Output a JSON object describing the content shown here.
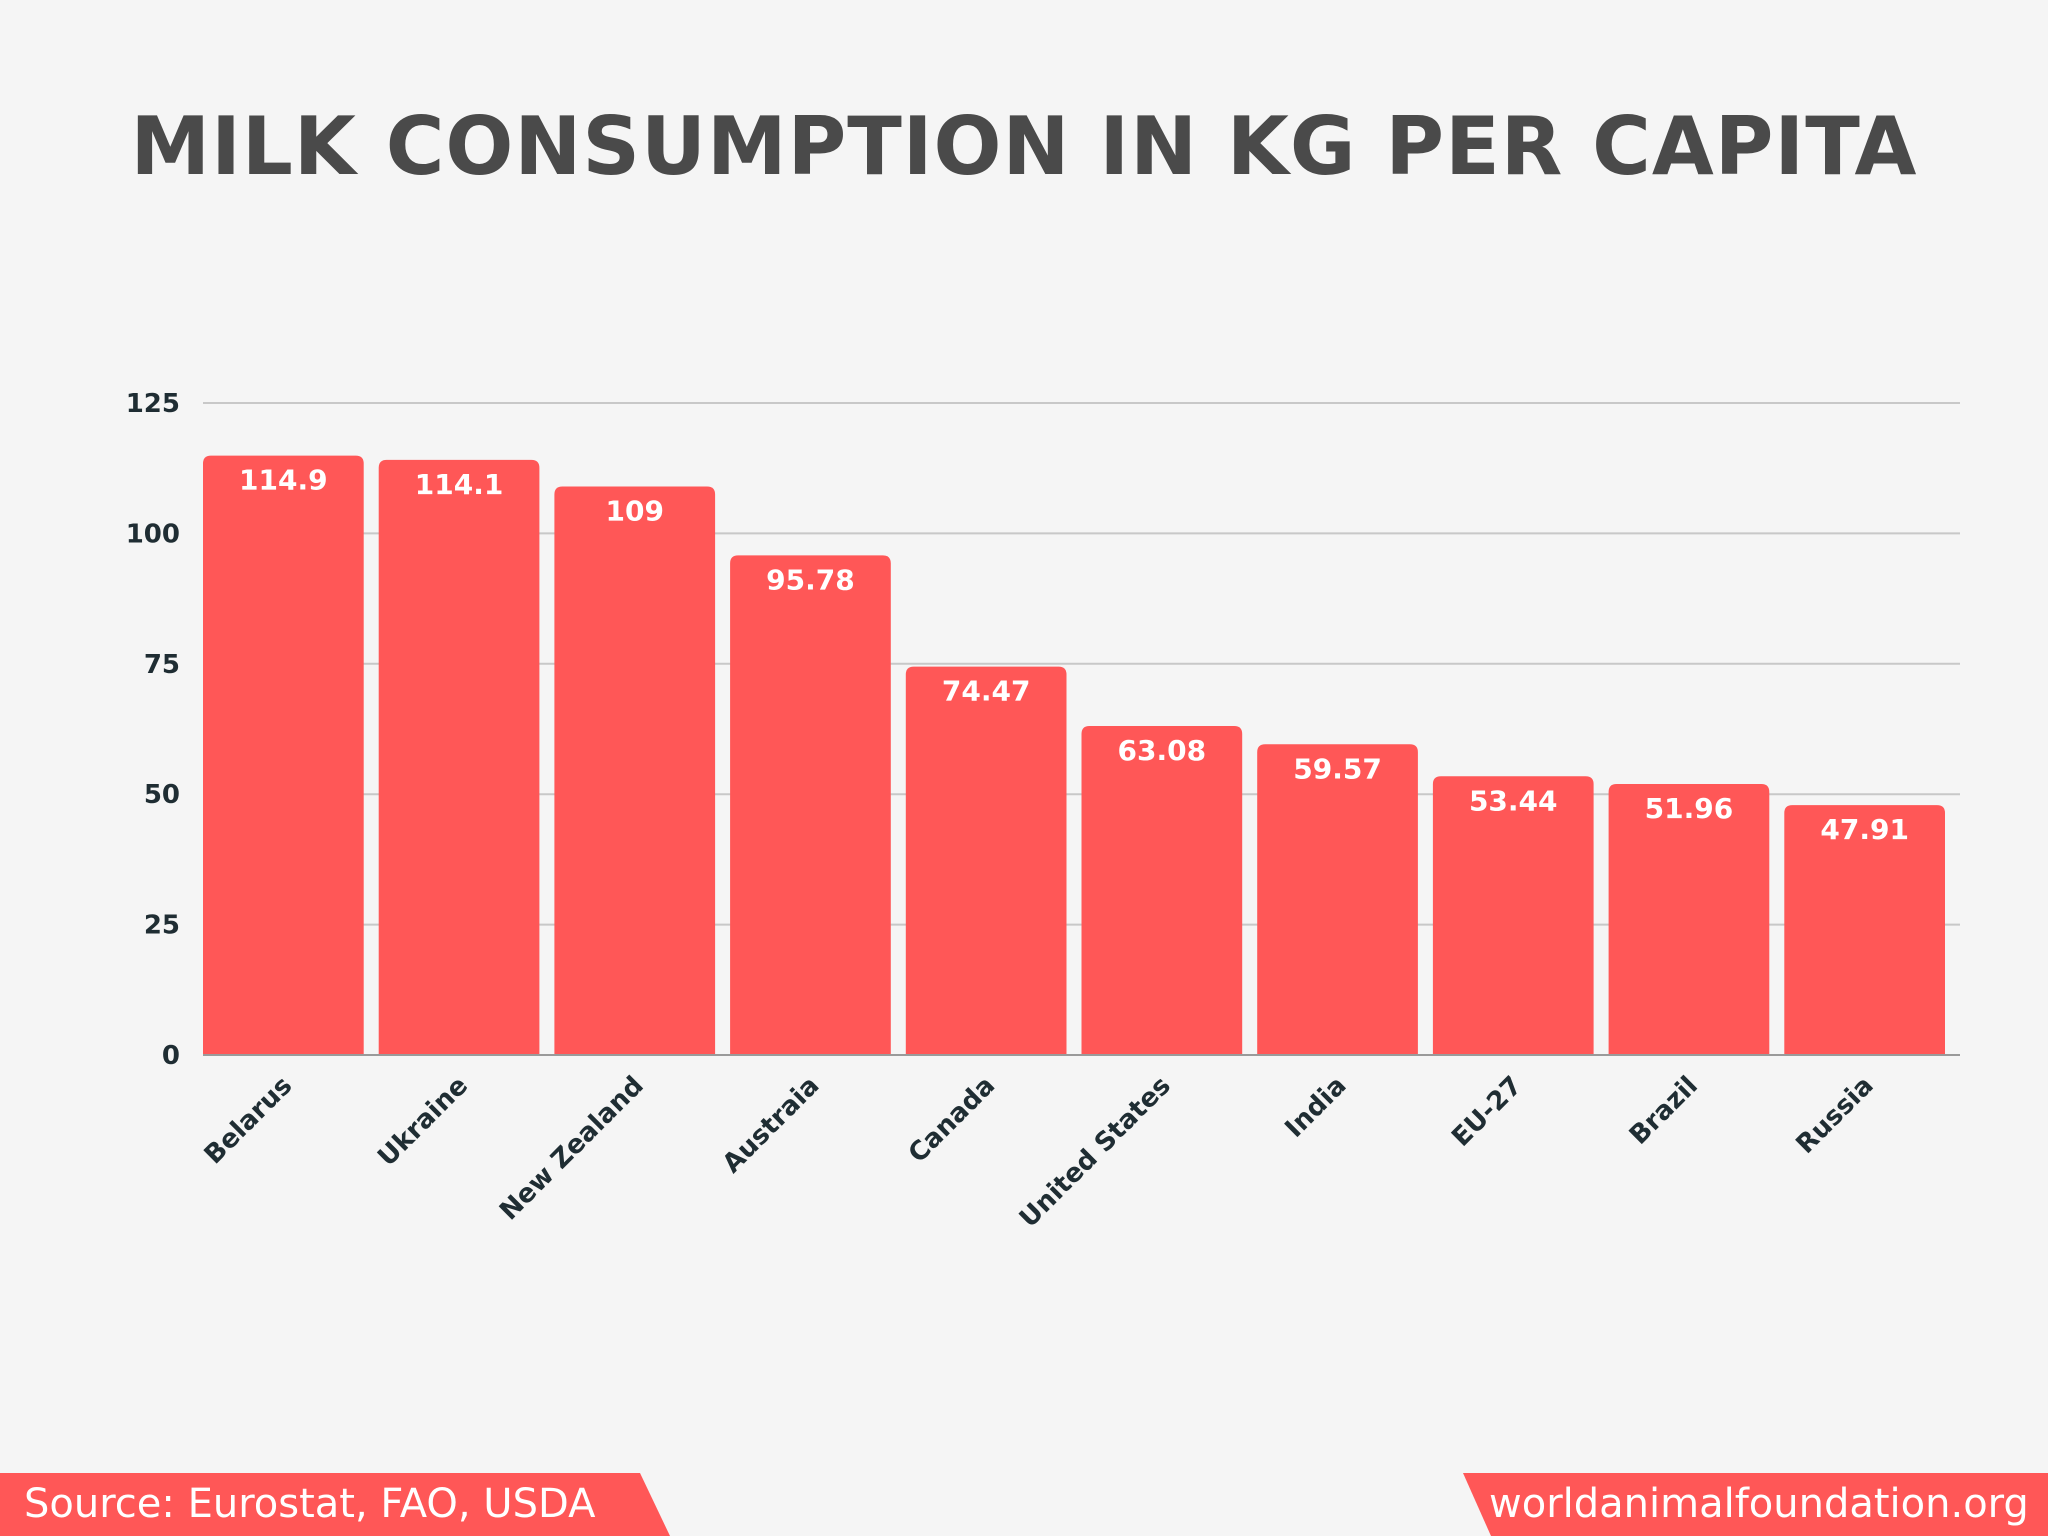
{
  "chart_data": {
    "type": "bar",
    "title": "MILK CONSUMPTION IN KG PER CAPITA",
    "categories": [
      "Belarus",
      "Ukraine",
      "New Zealand",
      "Austraia",
      "Canada",
      "United States",
      "India",
      "EU-27",
      "Brazil",
      "Russia"
    ],
    "values": [
      114.9,
      114.1,
      109,
      95.78,
      74.47,
      63.08,
      59.57,
      53.44,
      51.96,
      47.91
    ],
    "data_labels": [
      "114.9",
      "114.1",
      "109",
      "95.78",
      "74.47",
      "63.08",
      "59.57",
      "53.44",
      "51.96",
      "47.91"
    ],
    "yticks": [
      "0",
      "25",
      "50",
      "75",
      "100",
      "125"
    ],
    "ylim": [
      0,
      125
    ],
    "xlabel": "",
    "ylabel": "",
    "grid": true,
    "bar_color": "#ff5757"
  },
  "footer": {
    "source": "Source: Eurostat, FAO, USDA",
    "site": "worldanimalfoundation.org"
  }
}
